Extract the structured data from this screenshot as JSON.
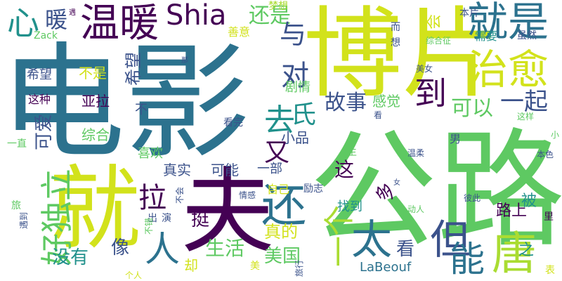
{
  "words": [
    {
      "text": "电影",
      "color": "#2c728e"
    },
    {
      "text": "公路",
      "color": "#5ec962"
    },
    {
      "text": "博片",
      "color": "#d2e21b"
    },
    {
      "text": "就",
      "color": "#d2e21b"
    },
    {
      "text": "夫",
      "color": "#440154"
    },
    {
      "text": "温暖",
      "color": "#440154"
    },
    {
      "text": "Shia",
      "color": "#440154"
    },
    {
      "text": "就是",
      "color": "#2c728e"
    },
    {
      "text": "治愈",
      "color": "#d2e21b"
    },
    {
      "text": "好独立",
      "color": "#5ec962"
    },
    {
      "text": "人",
      "color": "#2c728e"
    },
    {
      "text": "还",
      "color": "#2c728e"
    },
    {
      "text": "一个",
      "color": "#aadc32"
    },
    {
      "text": "太",
      "color": "#2c728e"
    },
    {
      "text": "但",
      "color": "#3b528b"
    },
    {
      "text": "能",
      "color": "#2c728e"
    },
    {
      "text": "唐",
      "color": "#aadc32"
    },
    {
      "text": "心",
      "color": "#21918c"
    },
    {
      "text": "暖",
      "color": "#3b528b"
    },
    {
      "text": "还是",
      "color": "#5ec962"
    },
    {
      "text": "与",
      "color": "#3b528b"
    },
    {
      "text": "对",
      "color": "#3b528b"
    },
    {
      "text": "希望",
      "color": "#3b528b"
    },
    {
      "text": "不是",
      "color": "#d2e21b"
    },
    {
      "text": "这种",
      "color": "#440154"
    },
    {
      "text": "亚拉",
      "color": "#440154"
    },
    {
      "text": "可爱",
      "color": "#3b528b"
    },
    {
      "text": "综合",
      "color": "#5ec962"
    },
    {
      "text": "希望",
      "color": "#3b528b"
    },
    {
      "text": "氏",
      "color": "#21918c"
    },
    {
      "text": "故事",
      "color": "#3b528b"
    },
    {
      "text": "感觉",
      "color": "#5ec962"
    },
    {
      "text": "到",
      "color": "#440154"
    },
    {
      "text": "可以",
      "color": "#5ec962"
    },
    {
      "text": "一起",
      "color": "#3b528b"
    },
    {
      "text": "去",
      "color": "#21918c"
    },
    {
      "text": "剧情",
      "color": "#5ec962"
    },
    {
      "text": "小品",
      "color": "#3b528b"
    },
    {
      "text": "又",
      "color": "#440154"
    },
    {
      "text": "这",
      "color": "#440154"
    },
    {
      "text": "拉",
      "color": "#440154"
    },
    {
      "text": "真实",
      "color": "#3b528b"
    },
    {
      "text": "可能",
      "color": "#3b528b"
    },
    {
      "text": "一部",
      "color": "#3b528b"
    },
    {
      "text": "喜欢",
      "color": "#5ec962"
    },
    {
      "text": "自己",
      "color": "#d2e21b"
    },
    {
      "text": "真的",
      "color": "#d2e21b"
    },
    {
      "text": "看",
      "color": "#3b528b"
    },
    {
      "text": "美国",
      "color": "#5ec962"
    },
    {
      "text": "生活",
      "color": "#5ec962"
    },
    {
      "text": "像",
      "color": "#3b528b"
    },
    {
      "text": "没有",
      "color": "#21918c"
    },
    {
      "text": "多",
      "color": "#440154"
    },
    {
      "text": "被",
      "color": "#21918c"
    },
    {
      "text": "路上",
      "color": "#440154"
    },
    {
      "text": "找到",
      "color": "#21918c"
    },
    {
      "text": "挺",
      "color": "#440154"
    },
    {
      "text": "却",
      "color": "#d2e21b"
    },
    {
      "text": "LaBeouf",
      "color": "#2c728e"
    },
    {
      "text": "之",
      "color": "#21918c"
    },
    {
      "text": "梦想",
      "color": "#aadc32"
    },
    {
      "text": "善意",
      "color": "#d2e21b"
    },
    {
      "text": "Zack",
      "color": "#5ec962"
    },
    {
      "text": "会",
      "color": "#d2e21b"
    },
    {
      "text": "本片",
      "color": "#3b528b"
    },
    {
      "text": "需要",
      "color": "#21918c"
    },
    {
      "text": "虽然",
      "color": "#3b528b"
    },
    {
      "text": "综合征",
      "color": "#5ec962"
    },
    {
      "text": "而",
      "color": "#3b528b"
    },
    {
      "text": "想",
      "color": "#3b528b"
    },
    {
      "text": "美女",
      "color": "#3b528b"
    },
    {
      "text": "这样",
      "color": "#5ec962"
    },
    {
      "text": "男",
      "color": "#3b528b"
    },
    {
      "text": "看完",
      "color": "#3b528b"
    },
    {
      "text": "看",
      "color": "#3b528b"
    },
    {
      "text": "不",
      "color": "#3b528b"
    },
    {
      "text": "一直",
      "color": "#5ec962"
    },
    {
      "text": "旅",
      "color": "#5ec962"
    },
    {
      "text": "遇到",
      "color": "#3b528b"
    },
    {
      "text": "不会",
      "color": "#3b528b"
    },
    {
      "text": "情感",
      "color": "#3b528b"
    },
    {
      "text": "励志",
      "color": "#3b528b"
    },
    {
      "text": "主",
      "color": "#5ec962"
    },
    {
      "text": "温柔",
      "color": "#3b528b"
    },
    {
      "text": "本色",
      "color": "#3b528b"
    },
    {
      "text": "彼此",
      "color": "#3b528b"
    },
    {
      "text": "动人",
      "color": "#5ec962"
    },
    {
      "text": "小",
      "color": "#5ec962"
    },
    {
      "text": "里",
      "color": "#440154"
    },
    {
      "text": "表",
      "color": "#d2e21b"
    },
    {
      "text": "旅行",
      "color": "#3b528b"
    },
    {
      "text": "美",
      "color": "#d2e21b"
    },
    {
      "text": "个人",
      "color": "#d2e21b"
    },
    {
      "text": "演",
      "color": "#3b528b"
    },
    {
      "text": "出",
      "color": "#3b528b"
    },
    {
      "text": "不错",
      "color": "#5ec962"
    },
    {
      "text": "那",
      "color": "#3b528b"
    },
    {
      "text": "遇",
      "color": "#440154"
    },
    {
      "text": "女",
      "color": "#3b528b"
    }
  ]
}
